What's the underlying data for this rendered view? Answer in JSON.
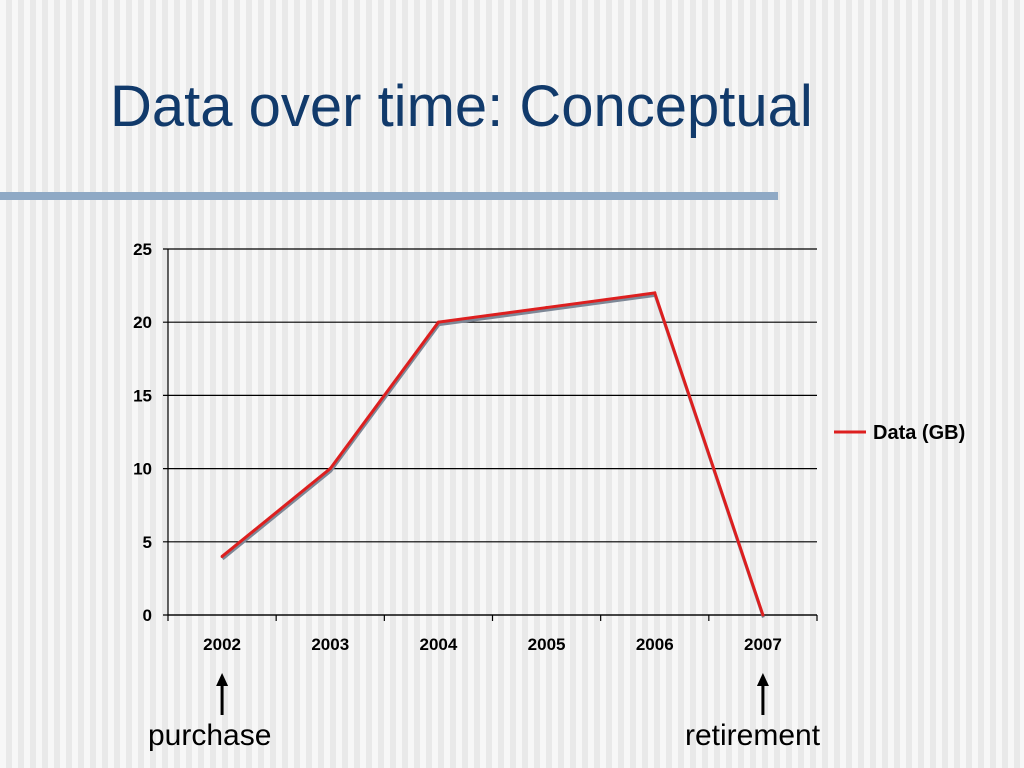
{
  "slide": {
    "title": "Data over time: Conceptual"
  },
  "colors": {
    "title": "#113a6b",
    "rule": "#8fa9c5",
    "series": "#dd1f1f",
    "shadow": "#7d8796",
    "grid": "#000000"
  },
  "chart_data": {
    "type": "line",
    "categories": [
      "2002",
      "2003",
      "2004",
      "2005",
      "2006",
      "2007"
    ],
    "series": [
      {
        "name": "Data (GB)",
        "values": [
          4,
          10,
          20,
          21,
          22,
          0
        ]
      }
    ],
    "ylim": [
      0,
      25
    ],
    "yticks": [
      0,
      5,
      10,
      15,
      20,
      25
    ],
    "grid": true,
    "legend_position": "right"
  },
  "annotations": [
    {
      "text": "purchase",
      "category": "2002"
    },
    {
      "text": "retirement",
      "category": "2007"
    }
  ]
}
